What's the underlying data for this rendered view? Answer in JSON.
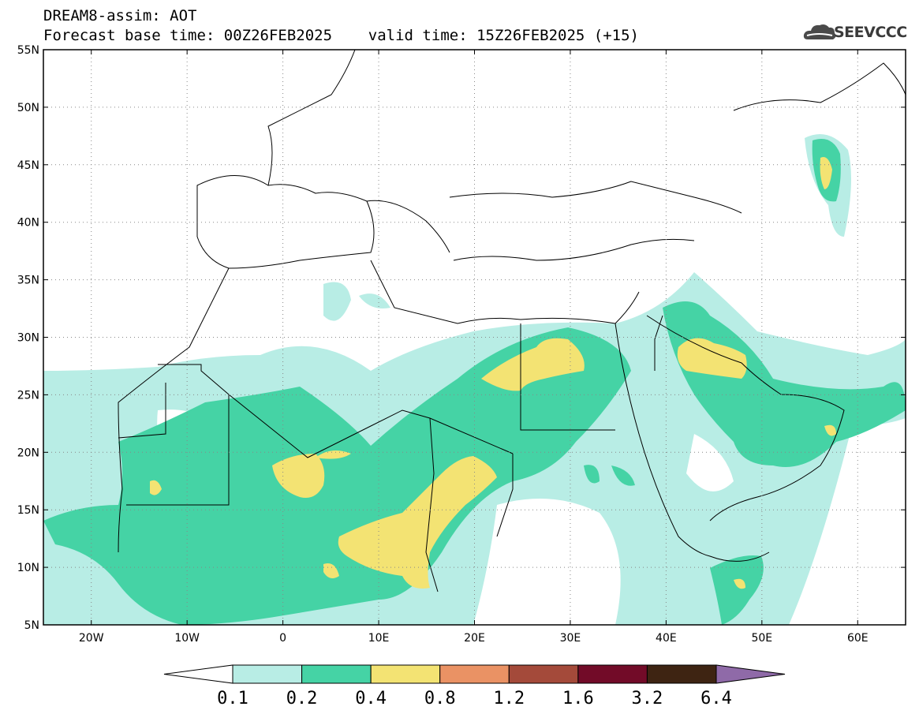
{
  "header": {
    "title_line1": "DREAM8-assim: AOT",
    "title_line2": "Forecast base time: 00Z26FEB2025    valid time: 15Z26FEB2025 (+15)",
    "logo_text": "SEEVCCC",
    "logo_icon": "cloud-logo-icon"
  },
  "map": {
    "lon_range": [
      -25,
      65
    ],
    "lat_range": [
      5,
      55
    ],
    "lat_ticks": [
      "55N",
      "50N",
      "45N",
      "40N",
      "35N",
      "30N",
      "25N",
      "20N",
      "15N",
      "10N",
      "5N"
    ],
    "lon_ticks": [
      "20W",
      "10W",
      "0",
      "10E",
      "20E",
      "30E",
      "40E",
      "50E",
      "60E"
    ],
    "grid": "dotted"
  },
  "colorbar": {
    "levels": [
      "0.1",
      "0.2",
      "0.4",
      "0.8",
      "1.2",
      "1.6",
      "3.2",
      "6.4"
    ],
    "colors": [
      "#b8ede5",
      "#45d3a5",
      "#f3e373",
      "#ea9264",
      "#a44a3a",
      "#720b28",
      "#3e2412",
      "#8f6aa8"
    ],
    "under_color": "#ffffff"
  }
}
